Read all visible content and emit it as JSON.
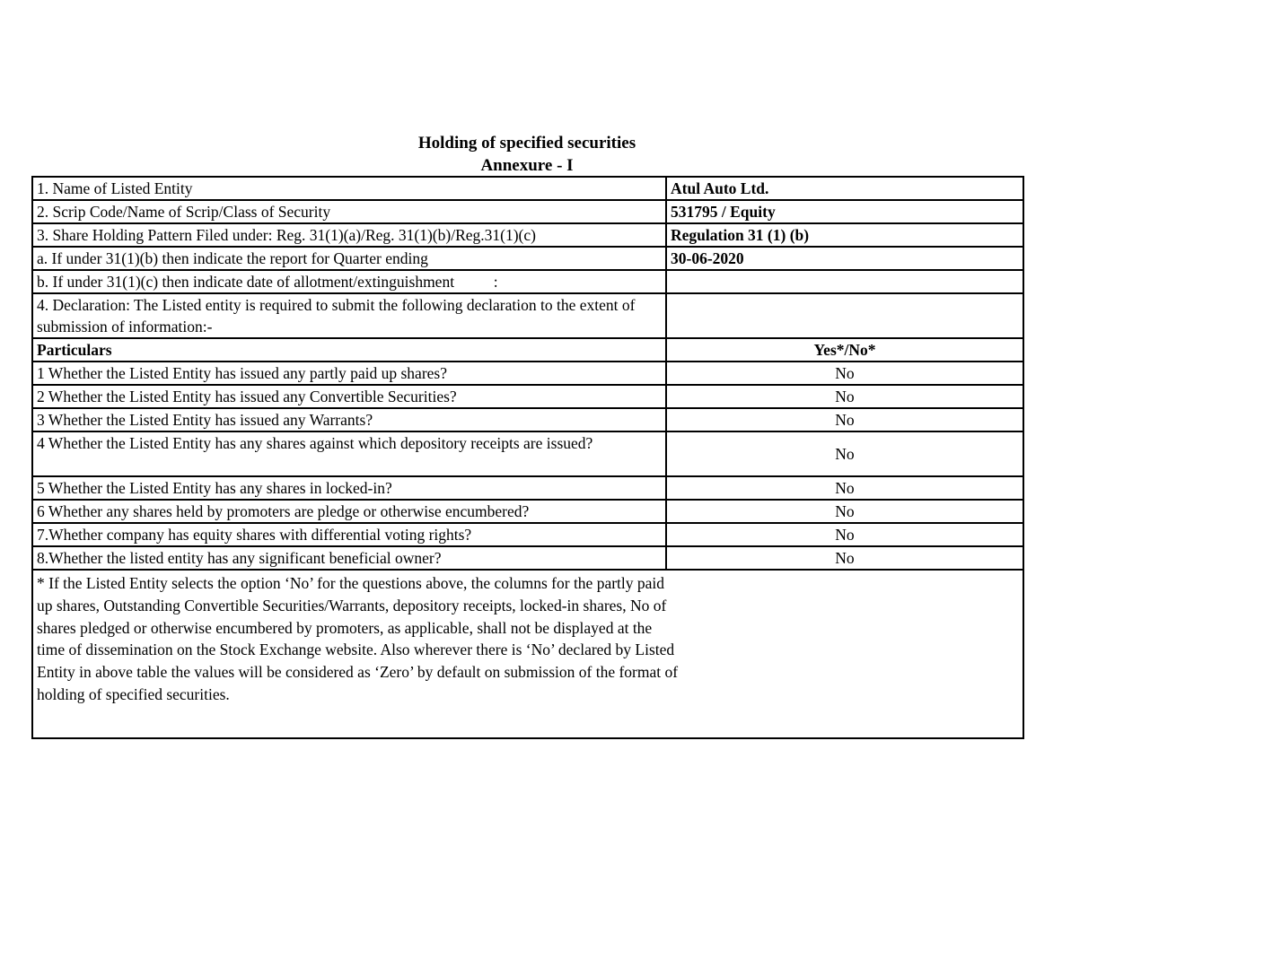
{
  "page": {
    "title": "Holding of specified securities",
    "subtitle": "Annexure - I"
  },
  "entity_info": {
    "rows": [
      {
        "label": "1. Name of Listed Entity",
        "value": "Atul Auto Ltd."
      },
      {
        "label": "2. Scrip Code/Name of Scrip/Class of Security",
        "value": "531795 / Equity"
      },
      {
        "label": "3. Share Holding Pattern Filed under: Reg. 31(1)(a)/Reg. 31(1)(b)/Reg.31(1)(c)",
        "value": "Regulation 31 (1) (b)"
      },
      {
        "label": "a. If under 31(1)(b) then indicate the report for Quarter ending",
        "value": "30-06-2020"
      },
      {
        "label": "b. If under 31(1)(c) then indicate date of allotment/extinguishment          :",
        "value": ""
      },
      {
        "label": "4. Declaration: The Listed entity is required to submit the following declaration to the extent of submission of information:-",
        "value": ""
      }
    ]
  },
  "declaration_table": {
    "header": {
      "particulars": "Particulars",
      "yes_no": "Yes*/No*"
    },
    "questions": [
      {
        "label": "1 Whether the Listed Entity has issued any partly paid up shares?",
        "answer": "No"
      },
      {
        "label": "2 Whether the Listed Entity has issued any Convertible Securities?",
        "answer": "No"
      },
      {
        "label": "3 Whether the Listed Entity has issued any Warrants?",
        "answer": "No"
      },
      {
        "label": "4 Whether the Listed Entity has any shares against which depository receipts are issued?",
        "answer": "No"
      },
      {
        "label": "5 Whether the Listed Entity has any shares in locked-in?",
        "answer": "No"
      },
      {
        "label": "6 Whether any shares held by promoters are pledge or otherwise encumbered?",
        "answer": "No"
      },
      {
        "label": "7.Whether company has equity shares with differential voting rights?",
        "answer": "No"
      },
      {
        "label": "8.Whether the listed entity has any significant beneficial owner?",
        "answer": "No"
      }
    ]
  },
  "footnote": "* If the Listed Entity selects the option ‘No’ for the questions above, the columns for the partly paid up shares, Outstanding Convertible Securities/Warrants, depository receipts, locked-in shares, No of shares pledged or otherwise encumbered by promoters, as applicable, shall not be displayed at the time of dissemination on the Stock Exchange website. Also wherever there is ‘No’ declared by Listed Entity in above table the values will be considered as ‘Zero’ by default on submission of the format of holding of specified securities."
}
